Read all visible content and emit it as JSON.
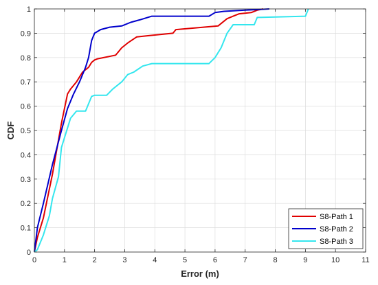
{
  "chart_data": {
    "type": "line",
    "title": "",
    "xlabel": "Error (m)",
    "ylabel": "CDF",
    "xlim": [
      0,
      11
    ],
    "ylim": [
      0,
      1
    ],
    "xticks": [
      "0",
      "1",
      "2",
      "3",
      "4",
      "5",
      "6",
      "7",
      "8",
      "9",
      "10",
      "11"
    ],
    "yticks": [
      "0",
      "0.1",
      "0.2",
      "0.3",
      "0.4",
      "0.5",
      "0.6",
      "0.7",
      "0.8",
      "0.9",
      "1"
    ],
    "grid": true,
    "legend_position": "bottom-right",
    "series": [
      {
        "name": "S8-Path 1",
        "color": "#e00000",
        "x": [
          0,
          0.1,
          0.3,
          0.6,
          0.9,
          1.1,
          1.2,
          1.4,
          1.6,
          1.8,
          1.9,
          2.0,
          2.1,
          2.7,
          2.9,
          3.1,
          3.4,
          3.8,
          4.6,
          4.7,
          6.1,
          6.4,
          6.6,
          6.8,
          7.2,
          7.4,
          7.6
        ],
        "y": [
          0,
          0.06,
          0.14,
          0.32,
          0.53,
          0.65,
          0.67,
          0.7,
          0.74,
          0.76,
          0.78,
          0.79,
          0.795,
          0.81,
          0.84,
          0.86,
          0.885,
          0.89,
          0.9,
          0.915,
          0.93,
          0.96,
          0.97,
          0.98,
          0.985,
          0.995,
          1.0
        ]
      },
      {
        "name": "S8-Path 2",
        "color": "#0000cc",
        "x": [
          0,
          0.1,
          0.3,
          0.6,
          0.9,
          1.1,
          1.3,
          1.5,
          1.7,
          1.8,
          1.9,
          2.0,
          2.2,
          2.5,
          2.9,
          3.2,
          3.5,
          3.9,
          5.8,
          6.0,
          6.3,
          7.0,
          7.5,
          7.8
        ],
        "y": [
          0,
          0.1,
          0.2,
          0.36,
          0.5,
          0.59,
          0.65,
          0.7,
          0.76,
          0.8,
          0.87,
          0.9,
          0.915,
          0.925,
          0.93,
          0.945,
          0.955,
          0.97,
          0.97,
          0.985,
          0.99,
          0.995,
          0.998,
          1.0
        ]
      },
      {
        "name": "S8-Path 3",
        "color": "#33e6ee",
        "x": [
          0,
          0.1,
          0.2,
          0.3,
          0.5,
          0.6,
          0.8,
          0.9,
          1.0,
          1.2,
          1.4,
          1.7,
          1.9,
          2.0,
          2.4,
          2.6,
          2.9,
          3.1,
          3.3,
          3.6,
          3.9,
          5.8,
          6.0,
          6.2,
          6.4,
          6.6,
          7.3,
          7.4,
          9.0,
          9.1
        ],
        "y": [
          0,
          0.01,
          0.04,
          0.07,
          0.15,
          0.22,
          0.31,
          0.43,
          0.47,
          0.55,
          0.58,
          0.58,
          0.64,
          0.645,
          0.645,
          0.67,
          0.7,
          0.73,
          0.74,
          0.765,
          0.775,
          0.775,
          0.8,
          0.84,
          0.9,
          0.935,
          0.935,
          0.965,
          0.97,
          1.0
        ]
      }
    ]
  }
}
